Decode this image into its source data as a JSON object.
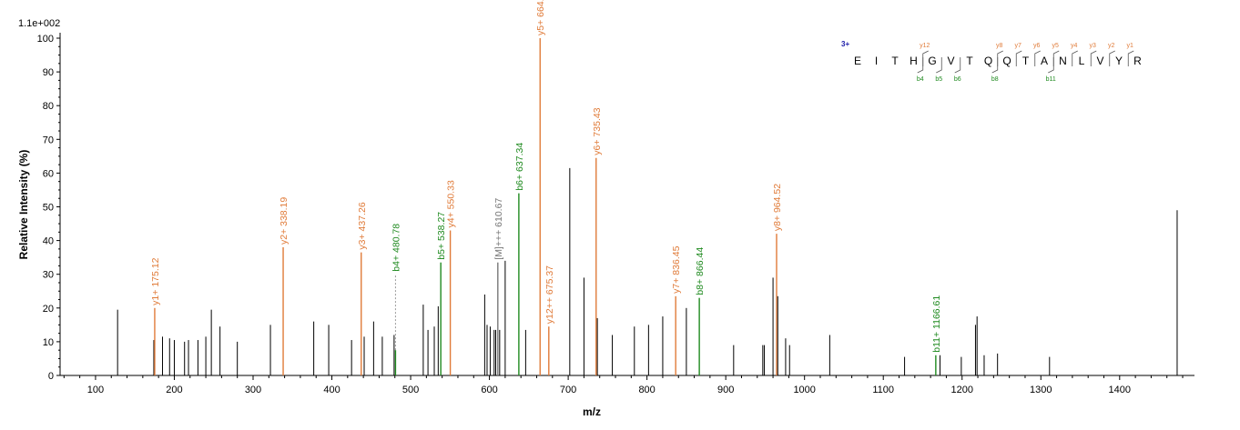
{
  "chart_data": {
    "type": "bar",
    "subtype": "ms2-spectrum",
    "ymax_label": "1.1e+002",
    "xlabel": "m/z",
    "ylabel": "Relative   Intensity (%)",
    "xlim": [
      55,
      1495
    ],
    "ylim": [
      0,
      100
    ],
    "x_ticks": [
      100,
      200,
      300,
      400,
      500,
      600,
      700,
      800,
      900,
      1000,
      1100,
      1200,
      1300,
      1400
    ],
    "y_ticks": [
      0,
      10,
      20,
      30,
      40,
      50,
      60,
      70,
      80,
      90,
      100
    ],
    "colors": {
      "y_ion": "#e07b39",
      "b_ion": "#1f8a1f",
      "precursor": "#777777",
      "other": "#000000",
      "charge": "#1a1aa8"
    },
    "peaks": [
      {
        "mz": 128,
        "i": 19.5,
        "type": "other"
      },
      {
        "mz": 174,
        "i": 10.5,
        "type": "other"
      },
      {
        "mz": 175.12,
        "i": 20,
        "type": "y",
        "label": "y1+ 175.12"
      },
      {
        "mz": 185,
        "i": 11.5,
        "type": "other"
      },
      {
        "mz": 194,
        "i": 11,
        "type": "other"
      },
      {
        "mz": 200,
        "i": 10.5,
        "type": "other"
      },
      {
        "mz": 213,
        "i": 10,
        "type": "other"
      },
      {
        "mz": 218,
        "i": 10.5,
        "type": "other"
      },
      {
        "mz": 230,
        "i": 10.5,
        "type": "other"
      },
      {
        "mz": 240,
        "i": 11.5,
        "type": "other"
      },
      {
        "mz": 247,
        "i": 19.5,
        "type": "other"
      },
      {
        "mz": 258,
        "i": 14.5,
        "type": "other"
      },
      {
        "mz": 280,
        "i": 10,
        "type": "other"
      },
      {
        "mz": 322,
        "i": 15,
        "type": "other"
      },
      {
        "mz": 338.19,
        "i": 38,
        "type": "y",
        "label": "y2+ 338.19"
      },
      {
        "mz": 377,
        "i": 16,
        "type": "other"
      },
      {
        "mz": 396,
        "i": 15,
        "type": "other"
      },
      {
        "mz": 425,
        "i": 10.5,
        "type": "other"
      },
      {
        "mz": 437.26,
        "i": 36.5,
        "type": "y",
        "label": "y3+ 437.26"
      },
      {
        "mz": 441,
        "i": 11.5,
        "type": "other"
      },
      {
        "mz": 453,
        "i": 16,
        "type": "other"
      },
      {
        "mz": 464,
        "i": 11.5,
        "type": "other"
      },
      {
        "mz": 479,
        "i": 12,
        "type": "other"
      },
      {
        "mz": 480.78,
        "i": 7.5,
        "type": "b",
        "label": "b4+ 480.78",
        "label_i": 30,
        "dashed": true
      },
      {
        "mz": 516,
        "i": 21,
        "type": "other"
      },
      {
        "mz": 522,
        "i": 13.5,
        "type": "other"
      },
      {
        "mz": 530,
        "i": 14.5,
        "type": "other"
      },
      {
        "mz": 535,
        "i": 20.5,
        "type": "other"
      },
      {
        "mz": 538.27,
        "i": 33.5,
        "type": "b",
        "label": "b5+ 538.27"
      },
      {
        "mz": 550.33,
        "i": 43,
        "type": "y",
        "label": "y4+ 550.33"
      },
      {
        "mz": 594,
        "i": 24,
        "type": "other"
      },
      {
        "mz": 597,
        "i": 15,
        "type": "other"
      },
      {
        "mz": 601,
        "i": 14.5,
        "type": "other"
      },
      {
        "mz": 606,
        "i": 13.5,
        "type": "other"
      },
      {
        "mz": 608,
        "i": 13.5,
        "type": "other"
      },
      {
        "mz": 610.67,
        "i": 33.5,
        "type": "precursor",
        "label": "[M]+++ 610.67"
      },
      {
        "mz": 613,
        "i": 13.5,
        "type": "other"
      },
      {
        "mz": 620,
        "i": 34,
        "type": "other"
      },
      {
        "mz": 637.34,
        "i": 54,
        "type": "b",
        "label": "b6+ 637.34"
      },
      {
        "mz": 646,
        "i": 13.5,
        "type": "other"
      },
      {
        "mz": 664.33,
        "i": 100,
        "type": "y",
        "label": "y5+ 664.33"
      },
      {
        "mz": 675.37,
        "i": 14.5,
        "type": "y",
        "label": "y12++ 675.37"
      },
      {
        "mz": 702,
        "i": 61.5,
        "type": "other"
      },
      {
        "mz": 720,
        "i": 29,
        "type": "other"
      },
      {
        "mz": 735.43,
        "i": 64.5,
        "type": "y",
        "label": "y6+ 735.43"
      },
      {
        "mz": 737,
        "i": 17,
        "type": "other"
      },
      {
        "mz": 756,
        "i": 12,
        "type": "other"
      },
      {
        "mz": 784,
        "i": 14.5,
        "type": "other"
      },
      {
        "mz": 802,
        "i": 15,
        "type": "other"
      },
      {
        "mz": 820,
        "i": 17.5,
        "type": "other"
      },
      {
        "mz": 836.45,
        "i": 23.5,
        "type": "y",
        "label": "y7+ 836.45"
      },
      {
        "mz": 850,
        "i": 20,
        "type": "other"
      },
      {
        "mz": 866.44,
        "i": 23,
        "type": "b",
        "label": "b8+ 866.44"
      },
      {
        "mz": 910,
        "i": 9,
        "type": "other"
      },
      {
        "mz": 947,
        "i": 9,
        "type": "other"
      },
      {
        "mz": 949,
        "i": 9,
        "type": "other"
      },
      {
        "mz": 960,
        "i": 29,
        "type": "other"
      },
      {
        "mz": 964.52,
        "i": 42,
        "type": "y",
        "label": "y8+ 964.52"
      },
      {
        "mz": 966,
        "i": 23.5,
        "type": "other"
      },
      {
        "mz": 976,
        "i": 11,
        "type": "other"
      },
      {
        "mz": 981,
        "i": 9,
        "type": "other"
      },
      {
        "mz": 1032,
        "i": 12,
        "type": "other"
      },
      {
        "mz": 1127,
        "i": 5.5,
        "type": "other"
      },
      {
        "mz": 1166.61,
        "i": 6,
        "type": "b",
        "label": "b11+ 1166.61"
      },
      {
        "mz": 1172,
        "i": 6,
        "type": "other"
      },
      {
        "mz": 1199,
        "i": 5.5,
        "type": "other"
      },
      {
        "mz": 1217,
        "i": 15,
        "type": "other"
      },
      {
        "mz": 1219,
        "i": 17.5,
        "type": "other"
      },
      {
        "mz": 1228,
        "i": 6,
        "type": "other"
      },
      {
        "mz": 1245,
        "i": 6.5,
        "type": "other"
      },
      {
        "mz": 1311,
        "i": 5.5,
        "type": "other"
      },
      {
        "mz": 1473,
        "i": 49,
        "type": "other"
      }
    ],
    "sequence_annotation": {
      "charge": "3+",
      "residues": [
        "E",
        "I",
        "T",
        "H",
        "G",
        "V",
        "T",
        "Q",
        "Q",
        "T",
        "A",
        "N",
        "L",
        "V",
        "Y",
        "R"
      ],
      "y_ions": [
        {
          "label": "y12",
          "after": 4
        },
        {
          "label": "y8",
          "after": 8
        },
        {
          "label": "y7",
          "after": 9
        },
        {
          "label": "y6",
          "after": 10
        },
        {
          "label": "y5",
          "after": 11
        },
        {
          "label": "y4",
          "after": 12
        },
        {
          "label": "y3",
          "after": 13
        },
        {
          "label": "y2",
          "after": 14
        },
        {
          "label": "y1",
          "after": 15
        }
      ],
      "b_ions": [
        {
          "label": "b4",
          "after": 4
        },
        {
          "label": "b5",
          "after": 5
        },
        {
          "label": "b6",
          "after": 6
        },
        {
          "label": "b8",
          "after": 8
        },
        {
          "label": "b11",
          "after": 11
        }
      ]
    }
  }
}
